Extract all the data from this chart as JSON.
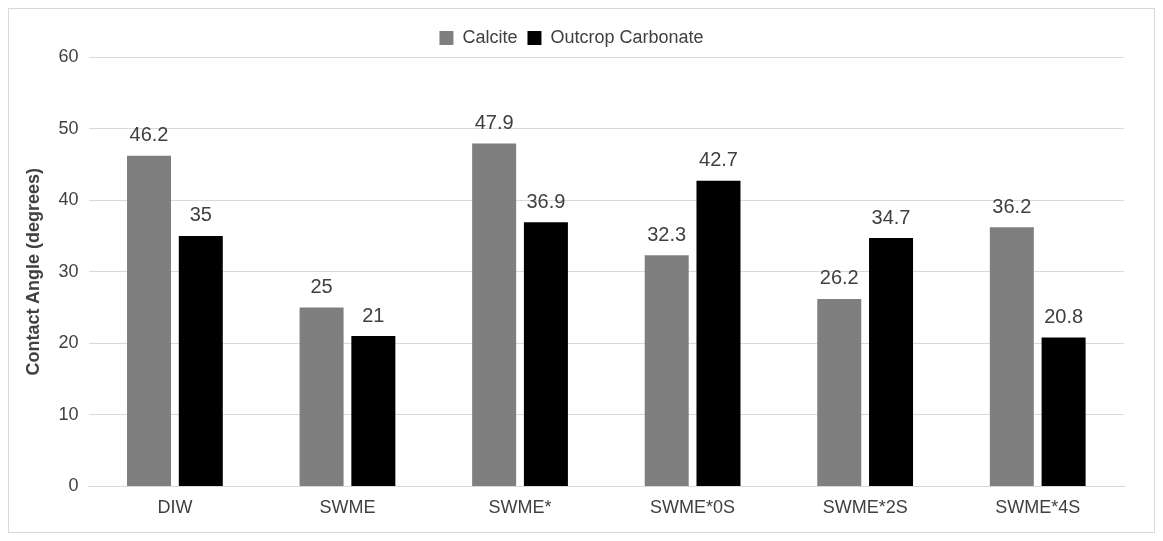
{
  "chart_data": {
    "type": "bar",
    "ylabel": "Contact Angle (degrees)",
    "categories": [
      "DIW",
      "SWME",
      "SWME*",
      "SWME*0S",
      "SWME*2S",
      "SWME*4S"
    ],
    "series": [
      {
        "name": "Calcite",
        "color": "#7f7f7f",
        "values": [
          46.2,
          25,
          47.9,
          32.3,
          26.2,
          36.2
        ]
      },
      {
        "name": "Outcrop Carbonate",
        "color": "#000000",
        "values": [
          35,
          21,
          36.9,
          42.7,
          34.7,
          20.8
        ]
      }
    ],
    "ylim": [
      0,
      60
    ],
    "yticks": [
      0,
      10,
      20,
      30,
      40,
      50,
      60
    ],
    "grid": "y",
    "legend": "top",
    "data_labels": true
  }
}
